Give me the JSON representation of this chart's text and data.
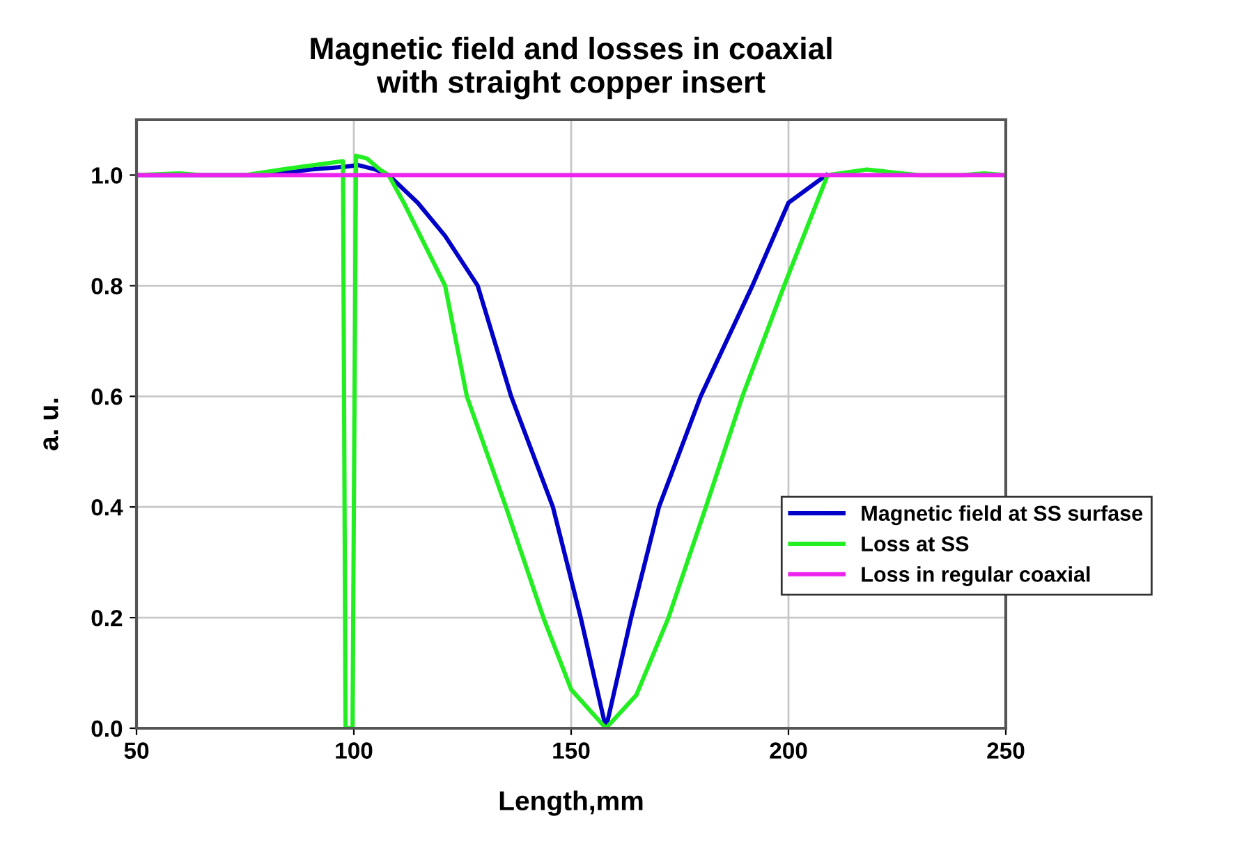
{
  "chart_data": {
    "type": "line",
    "title": "Magnetic field and losses in coaxial\nwith straight copper insert",
    "xlabel": "Length,mm",
    "ylabel": "a. u.",
    "xlim": [
      50,
      250
    ],
    "xticks": [
      50,
      100,
      150,
      200,
      250
    ],
    "ylim": [
      0,
      1.1
    ],
    "yticks": [
      {
        "value": 0,
        "label": "0.0"
      },
      {
        "value": 0.2,
        "label": "0.2"
      },
      {
        "value": 0.4,
        "label": "0.4"
      },
      {
        "value": 0.6,
        "label": "0.6"
      },
      {
        "value": 0.8,
        "label": "0.8"
      },
      {
        "value": 1.0,
        "label": "1.0"
      }
    ],
    "grid": true,
    "legend": "right",
    "marker": "none",
    "line_style": "solid",
    "series": [
      {
        "name": "Magnetic field at SS surfase",
        "color": "#0000c8",
        "x": [
          50,
          80,
          90,
          98,
          101,
          105,
          108,
          114.7,
          121,
          128.5,
          136.2,
          145.8,
          152.2,
          158,
          163.8,
          170.2,
          179.8,
          191.7,
          200,
          208.7
        ],
        "values": [
          1.0,
          1.0,
          1.01,
          1.015,
          1.018,
          1.01,
          1.0,
          0.95,
          0.89,
          0.8,
          0.6,
          0.4,
          0.2,
          0,
          0.2,
          0.4,
          0.6,
          0.8,
          0.95,
          1.0
        ]
      },
      {
        "name": "Loss at SS",
        "color": "#22ee22",
        "x": [
          50,
          60,
          65,
          75,
          85,
          97.5,
          98.1,
          99.7,
          100.5,
          103,
          106,
          108,
          111.5,
          121,
          126,
          135,
          143.6,
          150,
          158,
          165,
          172.4,
          181,
          189.4,
          199,
          209,
          218,
          230,
          240,
          245,
          250
        ],
        "values": [
          1.0,
          1.003,
          1.0,
          1.0,
          1.012,
          1.025,
          0,
          0,
          1.035,
          1.03,
          1.01,
          1.0,
          0.95,
          0.8,
          0.6,
          0.4,
          0.2,
          0.07,
          0,
          0.06,
          0.2,
          0.4,
          0.6,
          0.8,
          1.0,
          1.01,
          1.0,
          1.0,
          1.003,
          1.0
        ]
      },
      {
        "name": "Loss in regular coaxial",
        "color": "#ee22ee",
        "x": [
          50,
          250
        ],
        "values": [
          1.0,
          1.0
        ]
      }
    ]
  }
}
